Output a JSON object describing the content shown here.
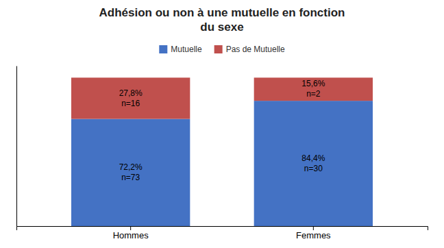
{
  "chart_data": {
    "type": "bar",
    "title": "Adhésion ou non à une mutuelle en fonction\ndu sexe",
    "categories": [
      "Hommes",
      "Femmes"
    ],
    "stacked": true,
    "data_labels": true,
    "legend": "top",
    "grid": false,
    "tick_labels": "x",
    "ylim": [
      0,
      108
    ],
    "series": [
      {
        "name": "Mutuelle",
        "color": "#4472C4",
        "values": [
          72.2,
          84.4
        ],
        "value_labels": [
          "72,2%",
          "84,4%"
        ],
        "counts": [
          73,
          30
        ],
        "count_labels": [
          "n=73",
          "n=30"
        ]
      },
      {
        "name": "Pas de Mutuelle",
        "color": "#C0504D",
        "values": [
          27.8,
          15.6
        ],
        "value_labels": [
          "27,8%",
          "15,6%"
        ],
        "counts": [
          16,
          2
        ],
        "count_labels": [
          "n=16",
          "n=2"
        ]
      }
    ]
  }
}
